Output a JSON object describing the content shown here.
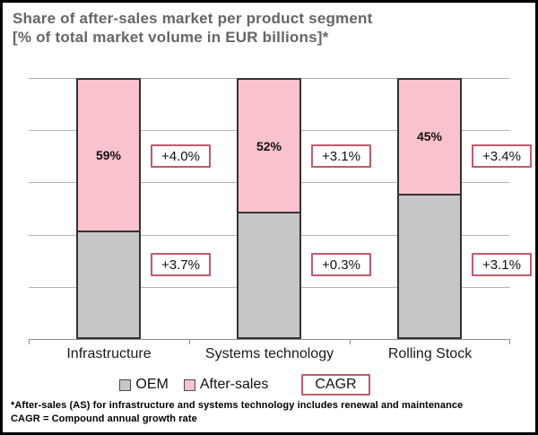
{
  "title": {
    "line1": "Share of after-sales market per product segment",
    "line2": "[% of total market volume in EUR billions]*"
  },
  "chart_data": {
    "type": "bar",
    "stacked": true,
    "title": "Share of after-sales market per product segment",
    "subtitle": "[% of total market volume in EUR billions]*",
    "categories": [
      "Infrastructure",
      "Systems technology",
      "Rolling Stock"
    ],
    "series": [
      {
        "name": "OEM",
        "color": "#c6c6c6",
        "values": [
          41,
          48,
          55
        ]
      },
      {
        "name": "After-sales",
        "color": "#f9c2cc",
        "values": [
          59,
          52,
          45
        ]
      }
    ],
    "after_sales_labels": [
      "59%",
      "52%",
      "45%"
    ],
    "cagr": {
      "after_sales": [
        "+4.0%",
        "+3.1%",
        "+3.4%"
      ],
      "oem": [
        "+3.7%",
        "+0.3%",
        "+3.1%"
      ]
    },
    "ylim": [
      0,
      100
    ],
    "gridlines_pct": [
      0,
      20,
      40,
      60,
      80,
      100
    ],
    "grid": true,
    "legend_position": "bottom"
  },
  "legend": {
    "oem": "OEM",
    "after_sales": "After-sales",
    "cagr": "CAGR"
  },
  "footnotes": {
    "line1": "*After-sales (AS) for infrastructure and systems technology includes renewal and maintenance",
    "line2": "CAGR = Compound annual growth rate"
  },
  "colors": {
    "oem_fill": "#c6c6c6",
    "after_sales_fill": "#f9c2cc",
    "cagr_box_border": "#c2596a",
    "bar_border": "#333333",
    "title_text": "#666666",
    "gridline": "#b5b5b5",
    "axis": "#8c8c8c"
  }
}
